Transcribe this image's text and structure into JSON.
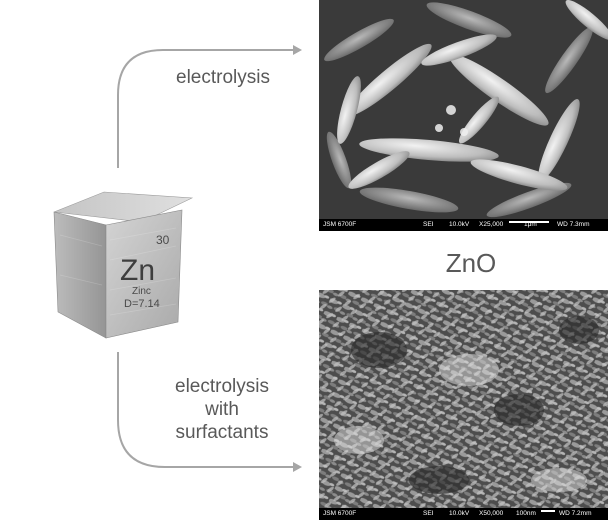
{
  "element": {
    "symbol": "Zn",
    "atomic_number": "30",
    "name": "Zinc",
    "density": "D=7.14"
  },
  "process_top": "electrolysis",
  "process_bottom": [
    "electrolysis",
    "with",
    "surfactants"
  ],
  "product": "ZnO",
  "sem_top": {
    "instrument": "JSM 6700F",
    "mode": "SEI",
    "voltage": "10.0kV",
    "magnification": "X25,000",
    "scale": "1μm",
    "wd": "WD 7.3mm"
  },
  "sem_bottom": {
    "instrument": "JSM 6700F",
    "mode": "SEI",
    "voltage": "10.0kV",
    "magnification": "X50,000",
    "scale": "100nm",
    "wd": "WD 7.2mm"
  },
  "colors": {
    "arrow": "#a6a6a6",
    "text": "#595959",
    "cube_light": "#d9d9d9",
    "cube_mid": "#bdbdbd",
    "cube_dark": "#a8a8a8"
  }
}
